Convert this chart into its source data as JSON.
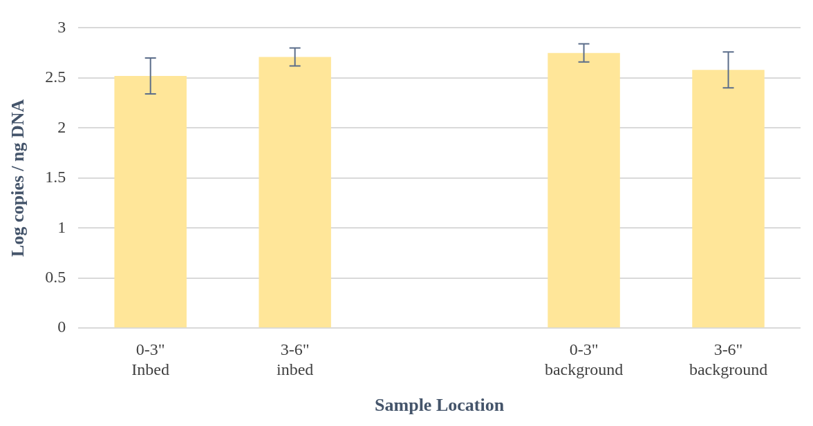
{
  "chart_data": {
    "type": "bar",
    "xlabel": "Sample Location",
    "ylabel": "Log copies / ng DNA",
    "categories": [
      "0-3\"\nInbed",
      "3-6\"\ninbed",
      null,
      "0-3\"\nbackground",
      "3-6\"\nbackground"
    ],
    "values": [
      2.52,
      2.71,
      null,
      2.75,
      2.58
    ],
    "errors": [
      0.18,
      0.09,
      null,
      0.09,
      0.18
    ],
    "color": "#ffe699",
    "ylim": [
      0,
      3
    ],
    "yticks": [
      0,
      0.5,
      1,
      1.5,
      2,
      2.5,
      3
    ],
    "grid": "y",
    "legend": false
  }
}
